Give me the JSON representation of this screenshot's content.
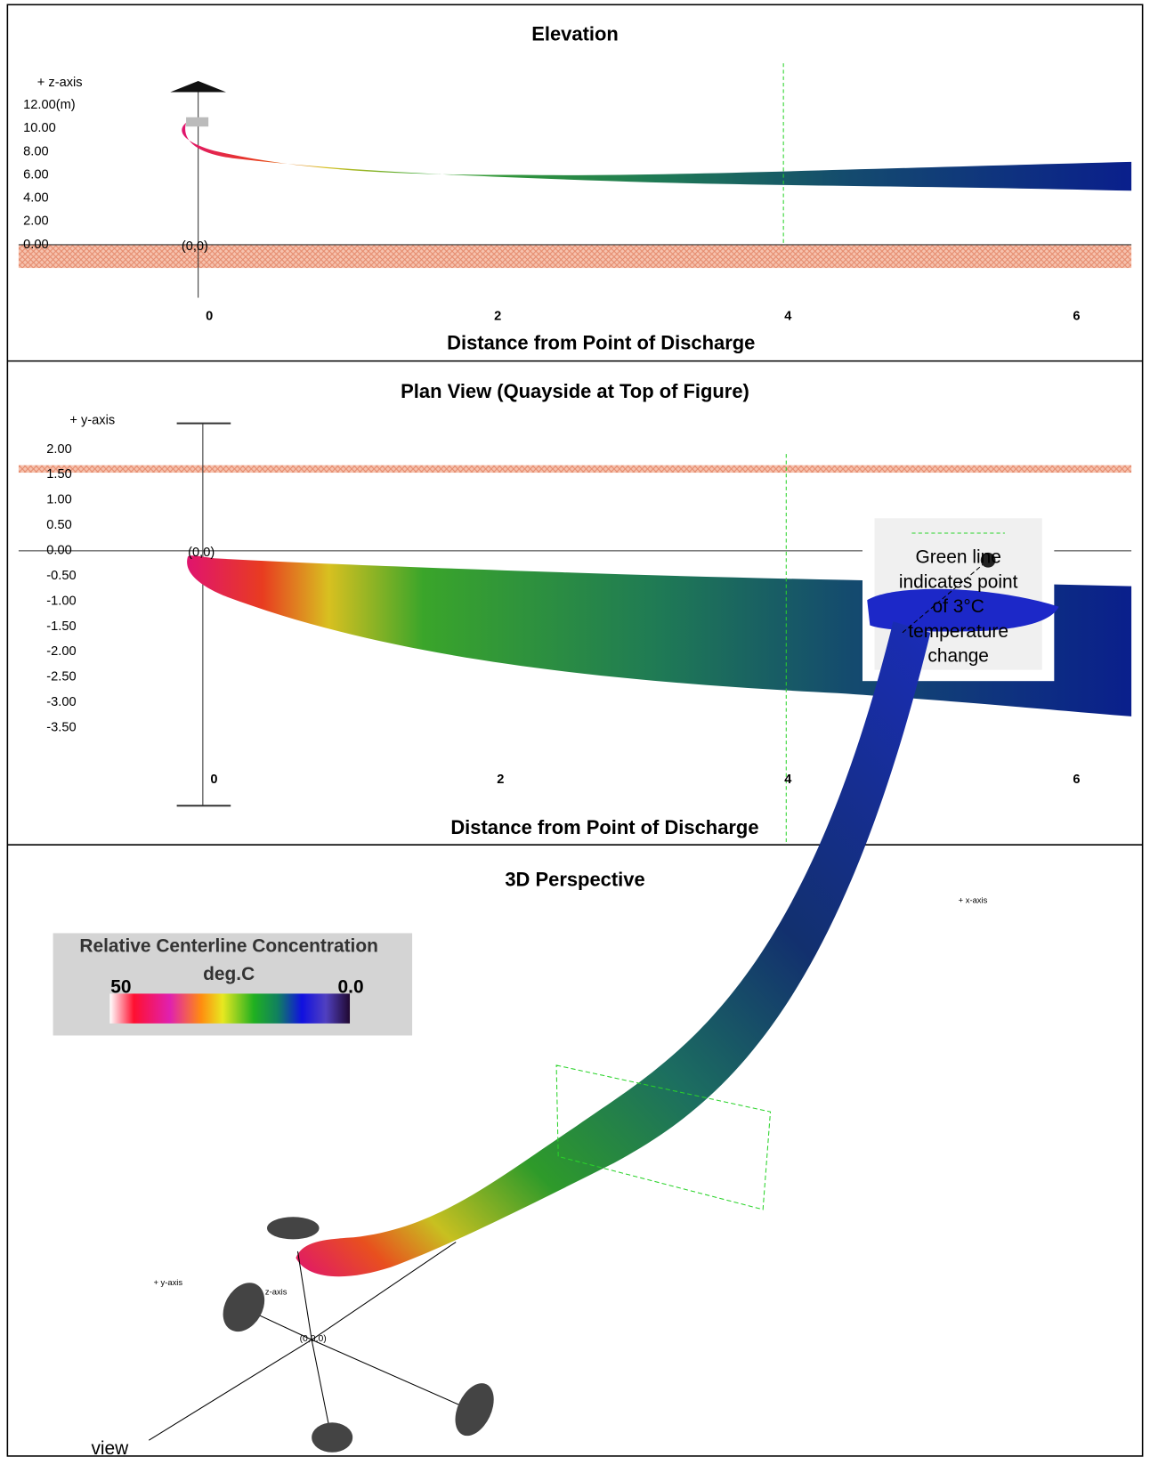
{
  "panels": [
    {
      "title": "Elevation",
      "axis_label": "+ z-axis",
      "yticks": [
        "12.00(m)",
        "10.00",
        "8.00",
        "6.00",
        "4.00",
        "2.00",
        "0.00"
      ],
      "origin": "(0,0)",
      "xticks": [
        "0",
        "2",
        "4",
        "6"
      ],
      "xlabel": "Distance from Point of Discharge"
    },
    {
      "title": "Plan View (Quayside at Top of Figure)",
      "axis_label": "+ y-axis",
      "yticks": [
        "2.00",
        "1.50",
        "1.00",
        "0.50",
        "0.00",
        "-0.50",
        "-1.00",
        "-1.50",
        "-2.00",
        "-2.50",
        "-3.00",
        "-3.50"
      ],
      "origin": "(0,0)",
      "xticks": [
        "0",
        "2",
        "4",
        "6"
      ],
      "xlabel": "Distance from Point of Discharge",
      "note": [
        "Green line",
        "indicates point",
        "of 3°C",
        "temperature",
        "change"
      ]
    },
    {
      "title": "3D Perspective",
      "legend": {
        "title": "Relative Centerline Concentration",
        "unit": "deg.C",
        "max": "50",
        "min": "0.0"
      },
      "labels": {
        "x_axis": "+ x-axis",
        "y_axis": "+ y-axis",
        "z_axis": "z-axis",
        "origin": "(0,0,0)",
        "view": "view"
      }
    }
  ]
}
